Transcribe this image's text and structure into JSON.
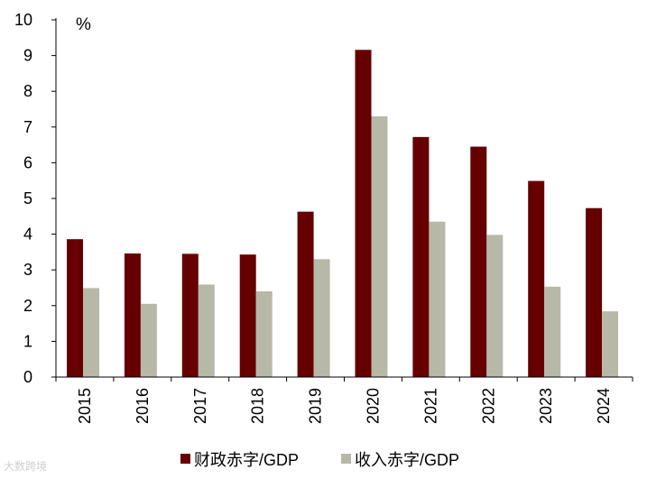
{
  "chart_data": {
    "type": "bar",
    "title": "",
    "xlabel": "",
    "ylabel": "%",
    "ylim": [
      0,
      10
    ],
    "yticks": [
      0,
      1,
      2,
      3,
      4,
      5,
      6,
      7,
      8,
      9,
      10
    ],
    "categories": [
      "2015",
      "2016",
      "2017",
      "2018",
      "2019",
      "2020",
      "2021",
      "2022",
      "2023",
      "2024"
    ],
    "series": [
      {
        "name": "财政赤字/GDP",
        "color": "#660000",
        "values": [
          3.86,
          3.46,
          3.45,
          3.43,
          4.63,
          9.16,
          6.72,
          6.45,
          5.49,
          4.73
        ]
      },
      {
        "name": "收入赤字/GDP",
        "color": "#b8b8a8",
        "values": [
          2.49,
          2.05,
          2.59,
          2.4,
          3.3,
          7.3,
          4.35,
          3.98,
          2.53,
          1.84
        ]
      }
    ],
    "legend_position": "bottom",
    "grid": false
  },
  "watermark": "大数跨境"
}
